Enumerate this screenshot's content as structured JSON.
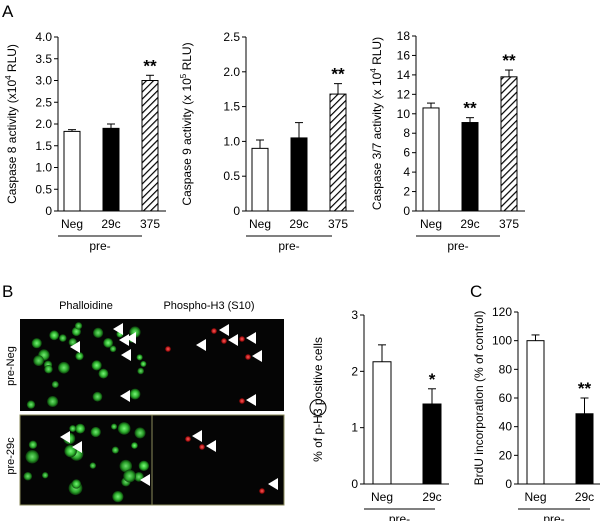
{
  "panel_letters": [
    "A",
    "B",
    "C"
  ],
  "chart_data": [
    {
      "type": "bar",
      "panel": "A",
      "categories": [
        "Neg",
        "29c",
        "375"
      ],
      "group_label": "pre-",
      "ylabel": "Caspase 8 activity (x10^4 RLU)",
      "ylabel_parts": {
        "pre": "Caspase 8 activity (x10",
        "sup": "4",
        "post": " RLU)"
      },
      "ylim": [
        0,
        4.0
      ],
      "yticks": [
        "0",
        "0.5",
        "1.0",
        "1.5",
        "2.0",
        "2.5",
        "3.0",
        "3.5",
        "4.0"
      ],
      "values": [
        1.83,
        1.9,
        3.0
      ],
      "errors": [
        0.04,
        0.1,
        0.12
      ],
      "fills": [
        "white",
        "black",
        "hatched"
      ],
      "significance": [
        "",
        "",
        "**"
      ]
    },
    {
      "type": "bar",
      "panel": "A",
      "categories": [
        "Neg",
        "29c",
        "375"
      ],
      "group_label": "pre-",
      "ylabel": "Caspase 9 activity (x 10^5 RLU)",
      "ylabel_parts": {
        "pre": "Caspase 9 activity (x 10",
        "sup": "5",
        "post": " RLU)"
      },
      "ylim": [
        0,
        2.5
      ],
      "yticks": [
        "0",
        "0.5",
        "1.0",
        "1.5",
        "2.0",
        "2.5"
      ],
      "values": [
        0.9,
        1.05,
        1.68
      ],
      "errors": [
        0.12,
        0.22,
        0.15
      ],
      "fills": [
        "white",
        "black",
        "hatched"
      ],
      "significance": [
        "",
        "",
        "**"
      ]
    },
    {
      "type": "bar",
      "panel": "A",
      "categories": [
        "Neg",
        "29c",
        "375"
      ],
      "group_label": "pre-",
      "ylabel": "Caspase 3/7 activity (x 10^4 RLU)",
      "ylabel_parts": {
        "pre": "Caspase 3/7 activity (x 10",
        "sup": "4",
        "post": " RLU)"
      },
      "ylim": [
        0,
        18
      ],
      "yticks": [
        "0",
        "2",
        "4",
        "6",
        "8",
        "10",
        "12",
        "14",
        "16",
        "18"
      ],
      "values": [
        10.6,
        9.1,
        13.8
      ],
      "errors": [
        0.5,
        0.5,
        0.7
      ],
      "fills": [
        "white",
        "black",
        "hatched"
      ],
      "significance": [
        "",
        "**",
        "**"
      ]
    },
    {
      "type": "bar",
      "panel": "B",
      "categories": [
        "Neg",
        "29c"
      ],
      "group_label": "pre-",
      "ylabel": "% of (p)-H3 positive cells",
      "ylabel_parts": {
        "pre": "% of ",
        "circled": "p",
        "post": "-H3 positive cells"
      },
      "ylim": [
        0,
        3
      ],
      "yticks": [
        "0",
        "1",
        "2",
        "3"
      ],
      "values": [
        2.17,
        1.42
      ],
      "errors": [
        0.3,
        0.27
      ],
      "fills": [
        "white",
        "black"
      ],
      "significance": [
        "",
        "*"
      ]
    },
    {
      "type": "bar",
      "panel": "C",
      "categories": [
        "Neg",
        "29c"
      ],
      "group_label": "pre-",
      "ylabel": "BrdU incorporation (% of control)",
      "ylim": [
        0,
        120
      ],
      "yticks": [
        "0",
        "20",
        "40",
        "60",
        "80",
        "100",
        "120"
      ],
      "values": [
        100,
        49
      ],
      "errors": [
        4,
        11
      ],
      "fills": [
        "white",
        "black"
      ],
      "significance": [
        "",
        "**"
      ]
    }
  ],
  "micrographs": {
    "column_labels": [
      "Phalloidine",
      "Phospho-H3 (S10)"
    ],
    "row_labels": [
      "pre-Neg",
      "pre-29c"
    ],
    "colors": {
      "phalloidine": "#2fb52f",
      "phospho": "#c41a1a",
      "background": "#050505"
    }
  },
  "colors": {
    "bar_black": "#000000",
    "bar_white": "#ffffff",
    "axis": "#000000"
  }
}
